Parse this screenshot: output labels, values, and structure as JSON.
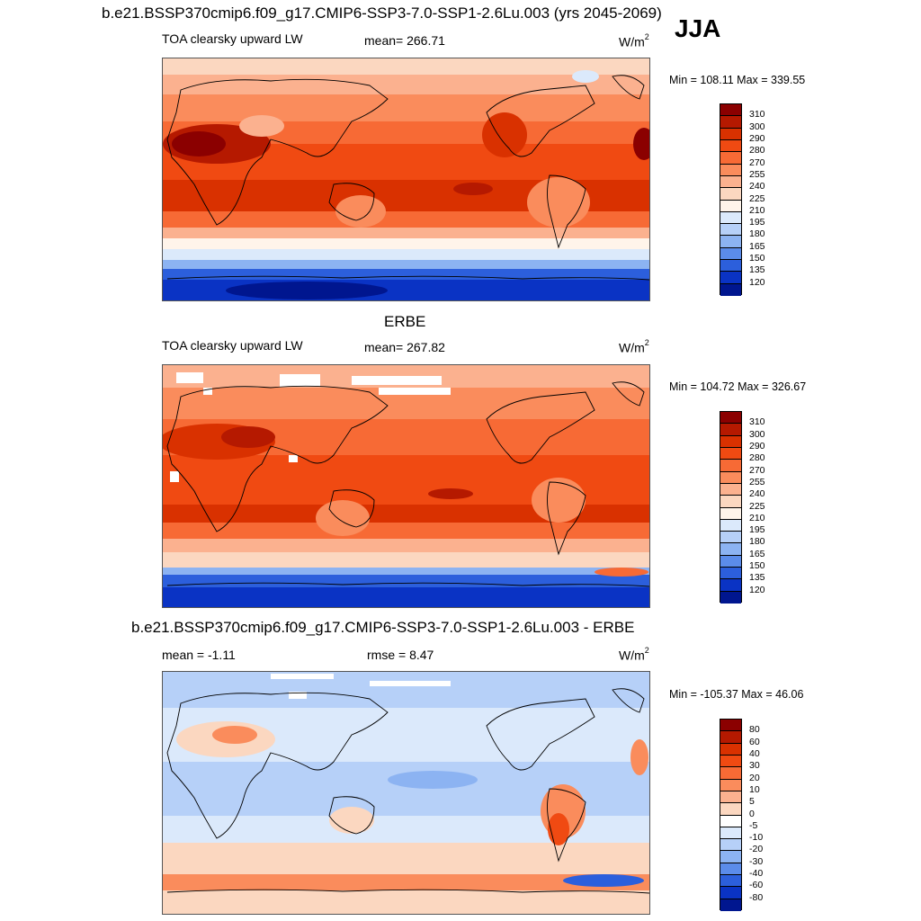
{
  "header": {
    "title": "b.e21.BSSP370cmip6.f09_g17.CMIP6-SSP3-7.0-SSP1-2.6Lu.003 (yrs 2045-2069)",
    "season": "JJA"
  },
  "panels": [
    {
      "left_label": "TOA clearsky upward LW",
      "center_label": "mean= 266.71",
      "units": "W/m",
      "units_sup": "2",
      "minmax": "Min = 108.11 Max = 339.55",
      "colorbar_levels": [
        "310",
        "300",
        "290",
        "280",
        "270",
        "255",
        "240",
        "225",
        "210",
        "195",
        "180",
        "165",
        "150",
        "135",
        "120"
      ],
      "colorbar_colors": [
        "#8b0000",
        "#b51900",
        "#d93100",
        "#f04a12",
        "#f76a35",
        "#fa8c5c",
        "#fbb18f",
        "#fbd7c0",
        "#fff4ea",
        "#dbe9fb",
        "#b6d0f8",
        "#8cb3f2",
        "#5b8cea",
        "#2c5fdc",
        "#0a33c4",
        "#00168f"
      ]
    },
    {
      "title": "ERBE",
      "left_label": "TOA clearsky upward LW",
      "center_label": "mean= 267.82",
      "units": "W/m",
      "units_sup": "2",
      "minmax": "Min = 104.72 Max = 326.67",
      "colorbar_levels": [
        "310",
        "300",
        "290",
        "280",
        "270",
        "255",
        "240",
        "225",
        "210",
        "195",
        "180",
        "165",
        "150",
        "135",
        "120"
      ],
      "colorbar_colors": [
        "#8b0000",
        "#b51900",
        "#d93100",
        "#f04a12",
        "#f76a35",
        "#fa8c5c",
        "#fbb18f",
        "#fbd7c0",
        "#fff4ea",
        "#dbe9fb",
        "#b6d0f8",
        "#8cb3f2",
        "#5b8cea",
        "#2c5fdc",
        "#0a33c4",
        "#00168f"
      ]
    },
    {
      "title": "b.e21.BSSP370cmip6.f09_g17.CMIP6-SSP3-7.0-SSP1-2.6Lu.003 - ERBE",
      "left_label": "mean =  -1.11",
      "center_label": "rmse =   8.47",
      "units": "W/m",
      "units_sup": "2",
      "minmax": "Min = -105.37 Max =  46.06",
      "colorbar_levels": [
        "80",
        "60",
        "40",
        "30",
        "20",
        "10",
        "5",
        "0",
        "-5",
        "-10",
        "-20",
        "-30",
        "-40",
        "-60",
        "-80"
      ],
      "colorbar_colors": [
        "#8b0000",
        "#b51900",
        "#d93100",
        "#f04a12",
        "#f76a35",
        "#fa8c5c",
        "#fbb18f",
        "#fbd7c0",
        "#ffffff",
        "#dbe9fb",
        "#b6d0f8",
        "#8cb3f2",
        "#5b8cea",
        "#2c5fdc",
        "#0a33c4",
        "#00168f"
      ]
    }
  ]
}
